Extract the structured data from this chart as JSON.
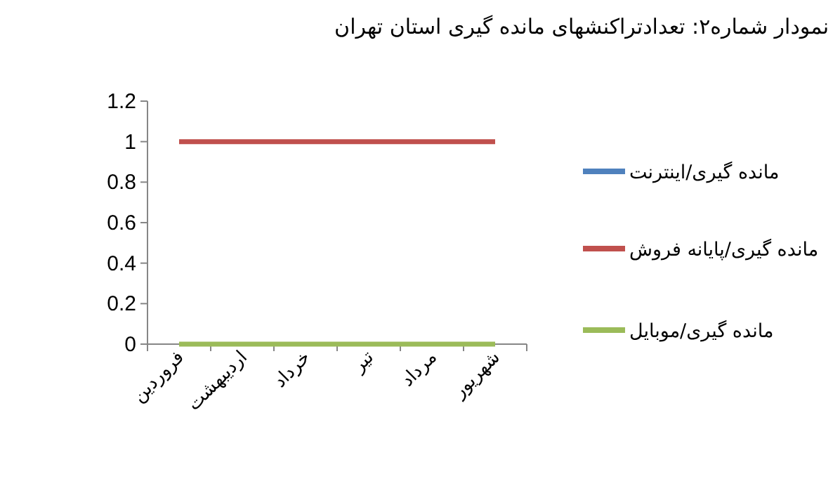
{
  "chart_data": {
    "type": "line",
    "title": "نمودار شماره۲: تعدادتراکنشهای مانده گیری استان تهران",
    "categories": [
      "فروردین",
      "اردیبهشت",
      "خرداد",
      "تیر",
      "مرداد",
      "شهریور"
    ],
    "series": [
      {
        "name": "مانده گیری/اینترنت",
        "color": "#4f81bd",
        "values": [
          null,
          null,
          null,
          null,
          null,
          null
        ]
      },
      {
        "name": "مانده گیری/پایانه فروش",
        "color": "#c0504d",
        "values": [
          1,
          1,
          1,
          1,
          1,
          1
        ]
      },
      {
        "name": "مانده گیری/موبایل",
        "color": "#9bbb59",
        "values": [
          0,
          0,
          0,
          0,
          0,
          0
        ]
      }
    ],
    "ylim": [
      0,
      1.2
    ],
    "yticks": [
      0,
      0.2,
      0.4,
      0.6,
      0.8,
      1,
      1.2
    ],
    "grid": false,
    "legend": "right",
    "marker": "none",
    "line_style": "solid"
  }
}
